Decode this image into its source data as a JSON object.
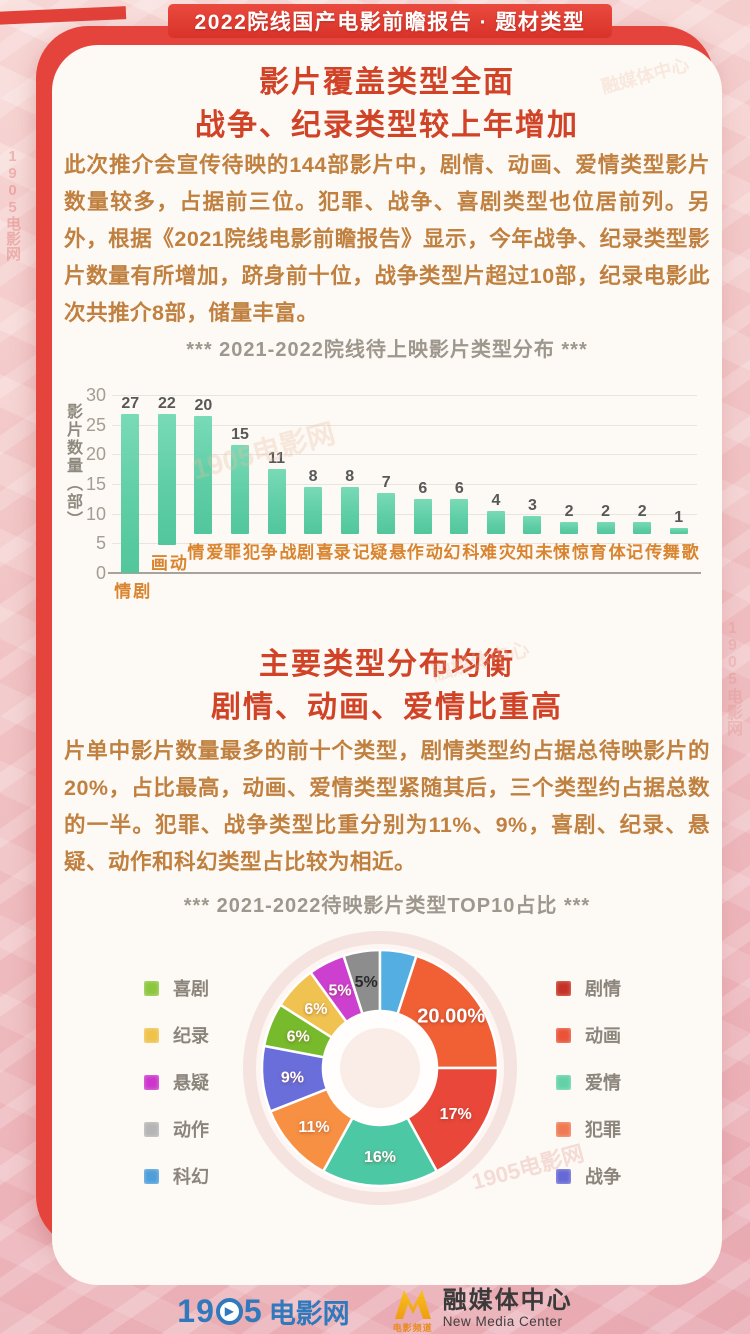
{
  "banner": {
    "title": "2022院线国产电影前瞻报告 · 题材类型"
  },
  "section1": {
    "title_line1": "影片覆盖类型全面",
    "title_line2": "战争、纪录类型较上年增加",
    "paragraph": "此次推介会宣传待映的144部影片中，剧情、动画、爱情类型影片数量较多，占据前三位。犯罪、战争、喜剧类型也位居前列。另外，根据《2021院线电影前瞻报告》显示，今年战争、纪录类型影片数量有所增加，跻身前十位，战争类型片超过10部，纪录电影此次共推介8部，储量丰富。"
  },
  "section2": {
    "title_line1": "主要类型分布均衡",
    "title_line2": "剧情、动画、爱情比重高",
    "paragraph": "片单中影片数量最多的前十个类型，剧情类型约占据总待映影片的20%，占比最高，动画、爱情类型紧随其后，三个类型约占据总数的一半。犯罪、战争类型比重分别为11%、9%，喜剧、纪录、悬疑、动作和科幻类型占比较为相近。"
  },
  "chart_data": [
    {
      "type": "bar",
      "title": "*** 2021-2022院线待上映影片类型分布 ***",
      "ylabel": "影片数量（部）",
      "categories": [
        "剧情",
        "动画",
        "爱情",
        "犯罪",
        "战争",
        "喜剧",
        "记录",
        "悬疑",
        "动作",
        "科幻",
        "灾难",
        "未知",
        "惊悚",
        "体育",
        "传记",
        "歌舞"
      ],
      "values": [
        27,
        22,
        20,
        15,
        11,
        8,
        8,
        7,
        6,
        6,
        4,
        3,
        2,
        2,
        2,
        1
      ],
      "ylim": [
        0,
        30
      ],
      "yticks": [
        0,
        5,
        10,
        15,
        20,
        25,
        30
      ],
      "grid": true,
      "bar_color": "#5fcea6"
    },
    {
      "type": "pie",
      "title": "*** 2021-2022待映影片类型TOP10占比 ***",
      "start_angle": -18,
      "slices": [
        {
          "label": "动作",
          "value": 5,
          "color": "#8d8d8d",
          "text": "5%",
          "text_color": "dark"
        },
        {
          "label": "科幻",
          "value": 5,
          "color": "#54aee1",
          "text": ""
        },
        {
          "label": "剧情",
          "value": 20,
          "color": "#f15f35",
          "text": "20.00%"
        },
        {
          "label": "动画",
          "value": 17,
          "color": "#e8473a",
          "text": "17%"
        },
        {
          "label": "爱情",
          "value": 16,
          "color": "#4cc9a4",
          "text": "16%"
        },
        {
          "label": "犯罪",
          "value": 11,
          "color": "#f79043",
          "text": "11%"
        },
        {
          "label": "战争",
          "value": 9,
          "color": "#6a6edb",
          "text": "9%"
        },
        {
          "label": "喜剧",
          "value": 6,
          "color": "#77bb2c",
          "text": "6%"
        },
        {
          "label": "纪录",
          "value": 6,
          "color": "#f0c351",
          "text": "6%"
        },
        {
          "label": "悬疑",
          "value": 5,
          "color": "#cd40cf",
          "text": "5%"
        }
      ],
      "legend_left": [
        {
          "label": "喜剧",
          "color": "#8cc63e"
        },
        {
          "label": "纪录",
          "color": "#efc24a"
        },
        {
          "label": "悬疑",
          "color": "#cc35cc"
        },
        {
          "label": "动作",
          "color": "#b5b5b5"
        },
        {
          "label": "科幻",
          "color": "#4e9ed9"
        }
      ],
      "legend_right": [
        {
          "label": "剧情",
          "color": "#c53225"
        },
        {
          "label": "动画",
          "color": "#ea5239"
        },
        {
          "label": "爱情",
          "color": "#62d1a7"
        },
        {
          "label": "犯罪",
          "color": "#ef7a52"
        },
        {
          "label": "战争",
          "color": "#6668d6"
        }
      ]
    }
  ],
  "footer": {
    "logo1905": {
      "part1": "19",
      "part2": "5",
      "suffix": "电影网"
    },
    "media_center": {
      "cn": "融媒体中心",
      "en": "New Media Center",
      "channel": "电影频道"
    }
  },
  "watermark": {
    "text_a": "1905电影网",
    "text_b": "融媒体中心"
  }
}
